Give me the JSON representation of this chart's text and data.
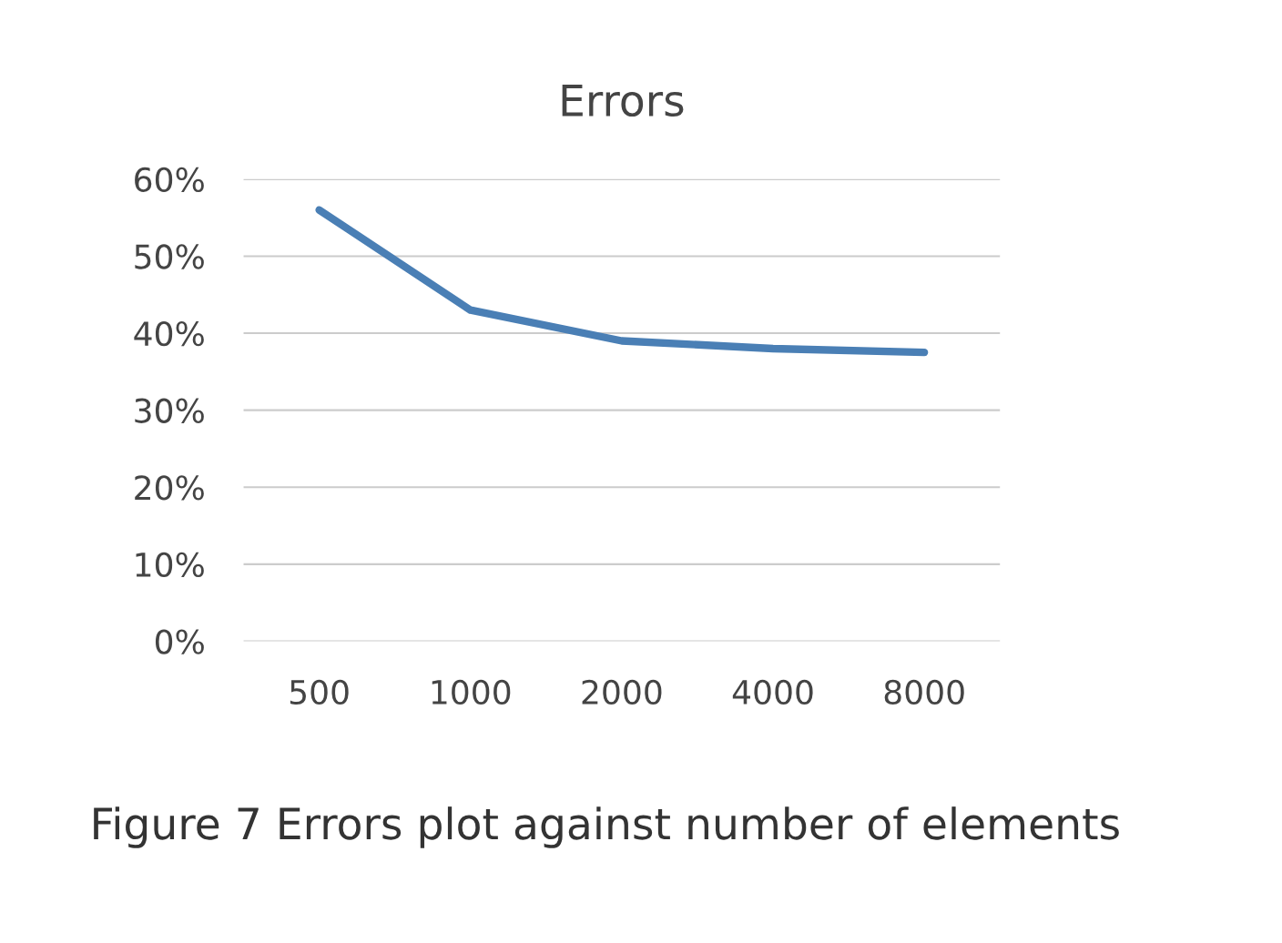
{
  "chart_data": {
    "type": "line",
    "title": "Errors",
    "categories": [
      "500",
      "1000",
      "2000",
      "4000",
      "8000"
    ],
    "series": [
      {
        "color": "#4a7fb5",
        "values": [
          56,
          43,
          39,
          38,
          37.5
        ]
      }
    ],
    "ylim": [
      0,
      60
    ],
    "yticks": [
      {
        "value": 0,
        "label": "0%"
      },
      {
        "value": 10,
        "label": "10%"
      },
      {
        "value": 20,
        "label": "20%"
      },
      {
        "value": 30,
        "label": "30%"
      },
      {
        "value": 40,
        "label": "40%"
      },
      {
        "value": 50,
        "label": "50%"
      },
      {
        "value": 60,
        "label": "60%"
      }
    ],
    "grid": "y",
    "marker": "none",
    "line_style": "solid",
    "annotations": [
      "Figure 7 Errors plot against number of elements"
    ]
  }
}
